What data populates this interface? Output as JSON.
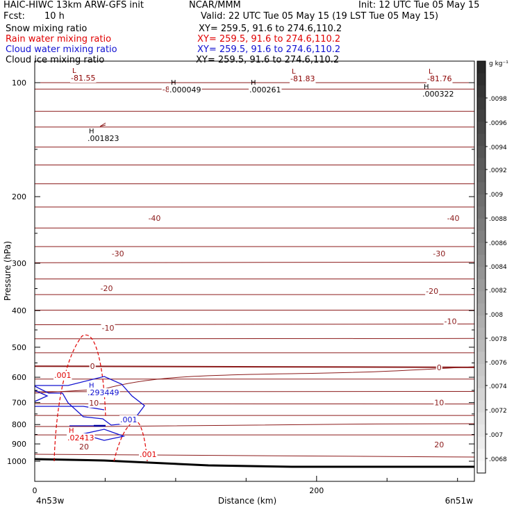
{
  "header": {
    "title": "HAIC-HIWC 13km ARW-GFS init",
    "org": "NCAR/MMM",
    "init": "Init: 12 UTC Tue 05 May 15",
    "fcst_label": "Fcst:",
    "fcst_value": "10 h",
    "valid": "Valid: 22 UTC Tue 05 May 15 (19 LST Tue 05 May 15)",
    "fields": [
      {
        "name": "Snow mixing ratio",
        "xy": "XY= 259.5, 91.6 to 274.6,110.2",
        "color": "#000000"
      },
      {
        "name": "Rain water mixing ratio",
        "xy": "XY= 259.5, 91.6 to 274.6,110.2",
        "color": "#e00000"
      },
      {
        "name": "Cloud water mixing ratio",
        "xy": "XY= 259.5, 91.6 to 274.6,110.2",
        "color": "#1010d0"
      },
      {
        "name": "Cloud ice mixing ratio",
        "xy": "XY= 259.5, 91.6 to 274.6,110.2",
        "color": "#000000"
      }
    ]
  },
  "chart_data": {
    "type": "line",
    "xlabel": "Distance (km)",
    "ylabel": "Pressure (hPa)",
    "xlim": [
      0,
      312
    ],
    "x_ticks": [
      "0",
      "200"
    ],
    "x_endpoint_labels": [
      "4n53w",
      "6n51w"
    ],
    "y_scale": "log",
    "ylim": [
      1050,
      50
    ],
    "y_ticks": [
      "100",
      "200",
      "300",
      "400",
      "500",
      "600",
      "700",
      "800",
      "900",
      "1000"
    ],
    "colorbar": {
      "unit": "g kg⁻¹",
      "ticks": [
        ".0098",
        ".0096",
        ".0094",
        ".0092",
        ".009",
        ".0088",
        ".0086",
        ".0084",
        ".0082",
        ".008",
        ".0078",
        ".0076",
        ".0074",
        ".0072",
        ".007",
        ".0068"
      ]
    },
    "temperature_contour_labels": [
      {
        "text": "-80",
        "x": 95,
        "p": 104
      },
      {
        "text": "-40",
        "x": 85,
        "p": 228
      },
      {
        "text": "-40",
        "x": 297,
        "p": 228
      },
      {
        "text": "-30",
        "x": 59,
        "p": 283
      },
      {
        "text": "-30",
        "x": 287,
        "p": 283
      },
      {
        "text": "-20",
        "x": 51,
        "p": 349
      },
      {
        "text": "-20",
        "x": 282,
        "p": 355
      },
      {
        "text": "-10",
        "x": 52,
        "p": 444
      },
      {
        "text": "-10",
        "x": 295,
        "p": 427
      },
      {
        "text": "0",
        "x": 41,
        "p": 561
      },
      {
        "text": "0",
        "x": 287,
        "p": 565
      },
      {
        "text": "10",
        "x": 42,
        "p": 701
      },
      {
        "text": "10",
        "x": 287,
        "p": 700
      },
      {
        "text": "20",
        "x": 35,
        "p": 915
      },
      {
        "text": "20",
        "x": 287,
        "p": 903
      }
    ],
    "extrema_labels": [
      {
        "type": "L",
        "value": "-81.55",
        "color": "#8b0000"
      },
      {
        "type": "L",
        "value": "-81.83",
        "color": "#8b0000"
      },
      {
        "type": "L",
        "value": "-81.76",
        "color": "#8b0000"
      },
      {
        "type": "H",
        "value": ".000049",
        "color": "#000000"
      },
      {
        "type": "H",
        "value": ".000261",
        "color": "#000000"
      },
      {
        "type": "H",
        "value": ".000322",
        "color": "#000000"
      },
      {
        "type": "H",
        "value": ".001823",
        "color": "#000000"
      },
      {
        "type": "H",
        "value": ".293449",
        "color": "#1010d0"
      },
      {
        "type": "H",
        "value": ".02413",
        "color": "#e00000"
      }
    ],
    "rain_contour_labels": [
      ".001",
      ".001"
    ],
    "cloud_contour_labels": [
      ".001"
    ],
    "colors": {
      "temperature": "#8b1a1a",
      "rain": "#e00000",
      "cloud_water": "#1010d0",
      "terrain": "#000000"
    }
  }
}
